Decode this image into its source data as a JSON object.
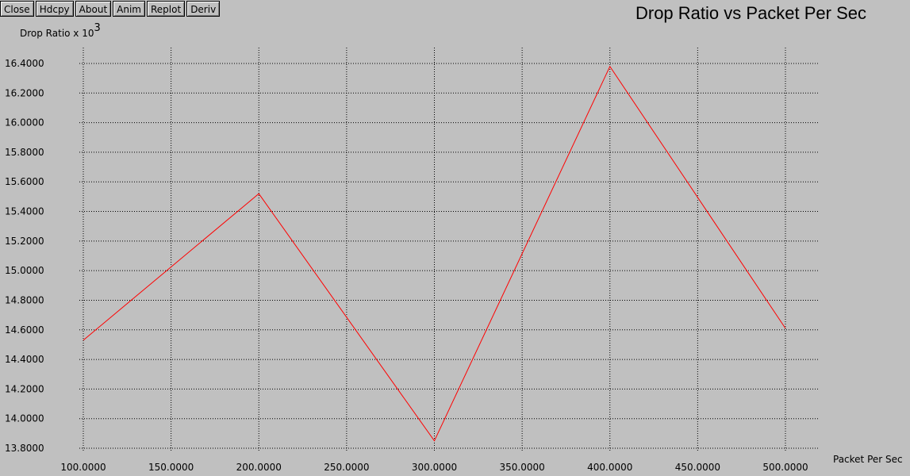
{
  "toolbar": {
    "buttons": [
      "Close",
      "Hdcpy",
      "About",
      "Anim",
      "Replot",
      "Deriv"
    ]
  },
  "colors": {
    "background": "#c0c0c0",
    "series": "#ff0000",
    "grid": "#000000"
  },
  "chart_data": {
    "type": "line",
    "title": "Drop Ratio vs Packet Per Sec",
    "xlabel": "Packet Per Sec",
    "ylabel": "Drop Ratio x 10",
    "ylabel_exponent": "3",
    "grid": true,
    "xlim": [
      100,
      500
    ],
    "ylim": [
      13.8,
      16.4
    ],
    "x_ticks": [
      "100.0000",
      "150.0000",
      "200.0000",
      "250.0000",
      "300.0000",
      "350.0000",
      "400.0000",
      "450.0000",
      "500.0000"
    ],
    "y_ticks": [
      "16.4000",
      "16.2000",
      "16.0000",
      "15.8000",
      "15.6000",
      "15.4000",
      "15.2000",
      "15.0000",
      "14.8000",
      "14.6000",
      "14.4000",
      "14.2000",
      "14.0000",
      "13.8000"
    ],
    "series": [
      {
        "x": [
          100,
          200,
          300,
          400,
          500
        ],
        "y": [
          14.53,
          15.52,
          13.85,
          16.38,
          14.61
        ]
      }
    ]
  }
}
